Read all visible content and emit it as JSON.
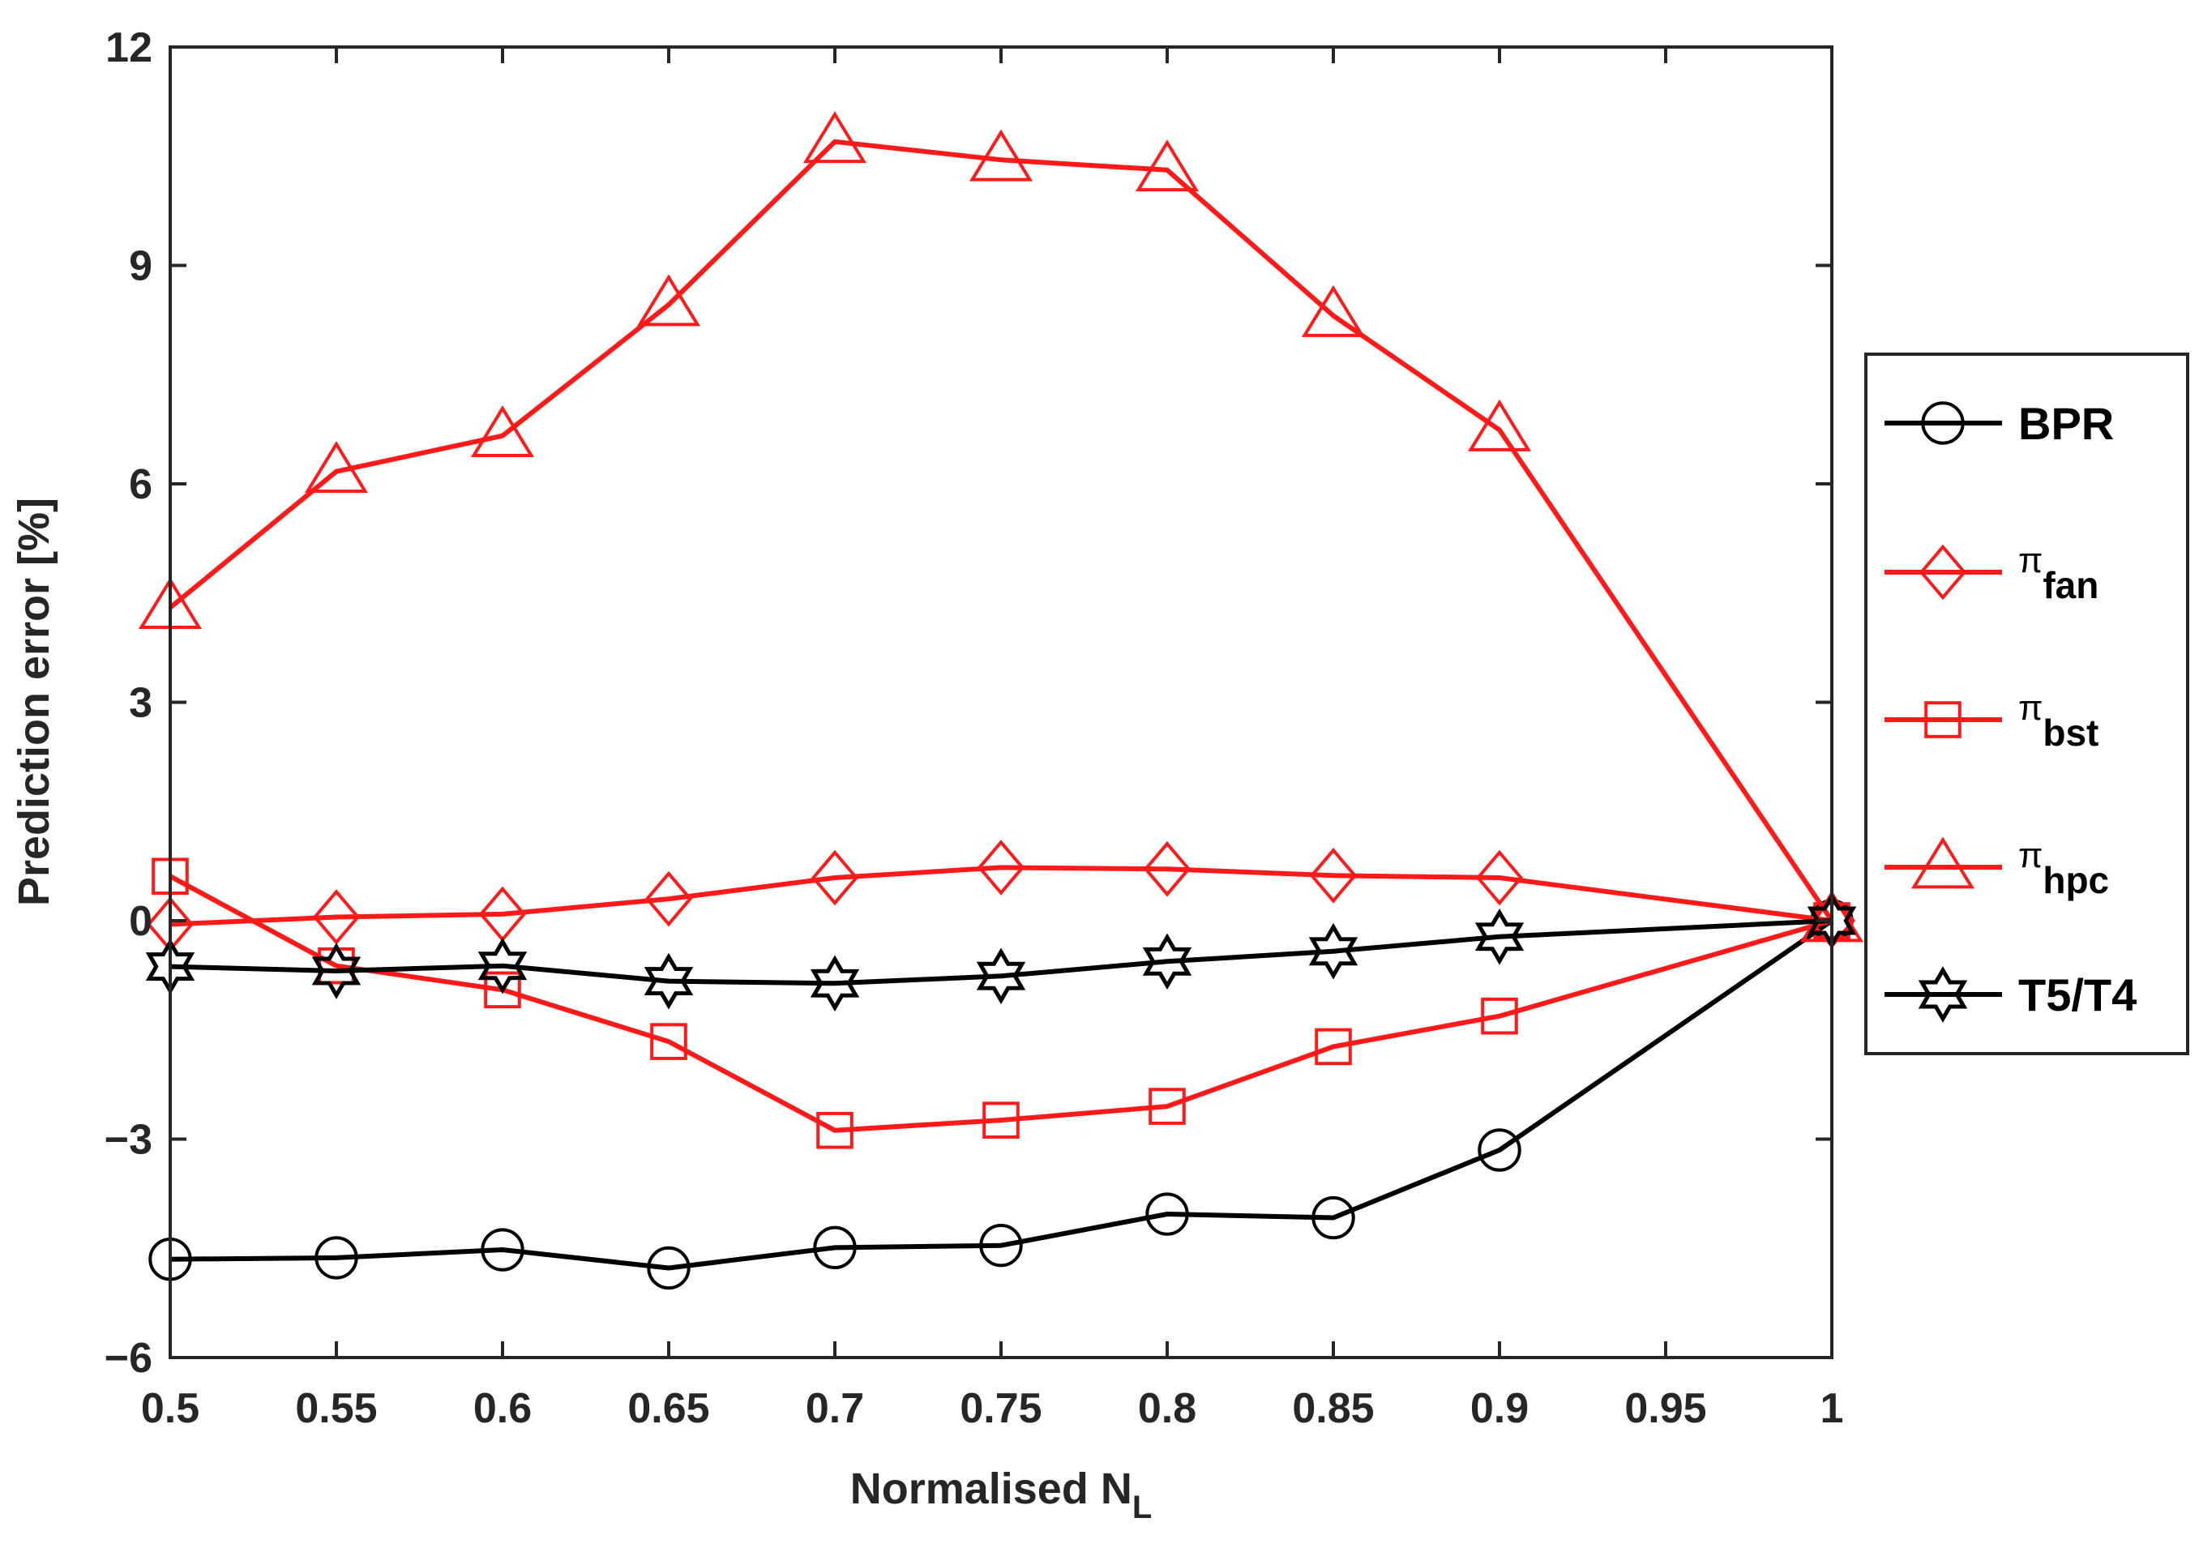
{
  "chart_data": {
    "type": "line",
    "title": "",
    "xlabel": "Normalised N",
    "xlabel_sub": "L",
    "ylabel": "Prediction error [%]",
    "xlim": [
      0.5,
      1
    ],
    "ylim": [
      -6,
      12
    ],
    "xticks": [
      0.5,
      0.55,
      0.6,
      0.65,
      0.7,
      0.75,
      0.8,
      0.85,
      0.9,
      0.95,
      1
    ],
    "xtick_labels": [
      "0.5",
      "0.55",
      "0.6",
      "0.65",
      "0.7",
      "0.75",
      "0.8",
      "0.85",
      "0.9",
      "0.95",
      "1"
    ],
    "yticks": [
      -6,
      -3,
      0,
      3,
      6,
      9,
      12
    ],
    "ytick_labels": [
      "−6",
      "−3",
      "0",
      "3",
      "6",
      "9",
      "12"
    ],
    "grid": false,
    "legend_position": "outside-right",
    "series": [
      {
        "name": "BPR",
        "symbol": "",
        "subscript": "",
        "color": "#000000",
        "marker": "circle",
        "x": [
          0.5,
          0.55,
          0.6,
          0.65,
          0.7,
          0.75,
          0.8,
          0.85,
          0.9,
          1
        ],
        "y": [
          -4.65,
          -4.63,
          -4.52,
          -4.77,
          -4.49,
          -4.46,
          -4.03,
          -4.08,
          -3.15,
          0
        ]
      },
      {
        "name": "fan",
        "symbol": "π",
        "subscript": "fan",
        "color": "#ff1a1a",
        "marker": "diamond",
        "x": [
          0.5,
          0.55,
          0.6,
          0.65,
          0.7,
          0.75,
          0.8,
          0.85,
          0.9,
          1
        ],
        "y": [
          -0.05,
          0.05,
          0.09,
          0.3,
          0.59,
          0.73,
          0.71,
          0.62,
          0.59,
          0
        ]
      },
      {
        "name": "bst",
        "symbol": "π",
        "subscript": "bst",
        "color": "#ff1a1a",
        "marker": "square",
        "x": [
          0.5,
          0.55,
          0.6,
          0.65,
          0.7,
          0.75,
          0.8,
          0.85,
          0.9,
          1
        ],
        "y": [
          0.61,
          -0.62,
          -0.95,
          -1.66,
          -2.88,
          -2.74,
          -2.55,
          -1.73,
          -1.31,
          0
        ]
      },
      {
        "name": "hpc",
        "symbol": "π",
        "subscript": "hpc",
        "color": "#ff1a1a",
        "marker": "triangle",
        "x": [
          0.5,
          0.55,
          0.6,
          0.65,
          0.7,
          0.75,
          0.8,
          0.85,
          0.9,
          1
        ],
        "y": [
          4.3,
          6.17,
          6.66,
          8.46,
          10.7,
          10.45,
          10.31,
          8.31,
          6.74,
          0
        ]
      },
      {
        "name": "T5/T4",
        "symbol": "",
        "subscript": "",
        "color": "#000000",
        "marker": "hexagram",
        "x": [
          0.5,
          0.55,
          0.6,
          0.65,
          0.7,
          0.75,
          0.8,
          0.85,
          0.9,
          1
        ],
        "y": [
          -0.63,
          -0.69,
          -0.62,
          -0.83,
          -0.86,
          -0.76,
          -0.56,
          -0.42,
          -0.22,
          0
        ]
      }
    ]
  }
}
